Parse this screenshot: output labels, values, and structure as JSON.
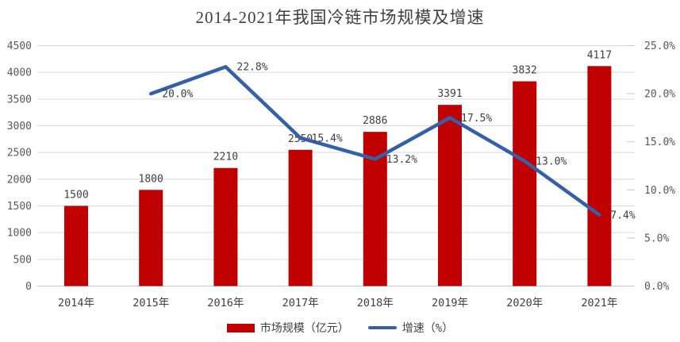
{
  "title": "2014-2021年我国冷链市场规模及增速",
  "legend": {
    "items": [
      {
        "label": "市场规模（亿元）",
        "swatch": "bar"
      },
      {
        "label": "增速（%）",
        "swatch": "line"
      }
    ]
  },
  "colors": {
    "bar": "#C00000",
    "line": "#3560A8",
    "grid": "#D9D9D9",
    "baseline": "#C6C6C6",
    "right_tick": "#C9C9C9",
    "axis_tick_text": "#595959",
    "data_label_text": "#404040",
    "title_text": "#3F3F3F",
    "background": "#FFFFFF"
  },
  "chart_data": {
    "type": "bar+line",
    "title": "2014-2021年我国冷链市场规模及增速",
    "categories": [
      "2014年",
      "2015年",
      "2016年",
      "2017年",
      "2018年",
      "2019年",
      "2020年",
      "2021年"
    ],
    "series": [
      {
        "name": "市场规模（亿元）",
        "type": "bar",
        "axis": "left",
        "values": [
          1500,
          1800,
          2210,
          2550,
          2886,
          3391,
          3832,
          4117
        ],
        "data_labels": [
          "1500",
          "1800",
          "2210",
          "2550",
          "2886",
          "3391",
          "3832",
          "4117"
        ]
      },
      {
        "name": "增速（%）",
        "type": "line",
        "axis": "right",
        "values": [
          null,
          20.0,
          22.8,
          15.4,
          13.2,
          17.5,
          13.0,
          7.4
        ],
        "data_labels": [
          null,
          "20.0%",
          "22.8%",
          "15.4%",
          "13.2%",
          "17.5%",
          "13.0%",
          "7.4%"
        ]
      }
    ],
    "left_axis": {
      "min": 0,
      "max": 4500,
      "step": 500,
      "tick_labels": [
        "0",
        "500",
        "1000",
        "1500",
        "2000",
        "2500",
        "3000",
        "3500",
        "4000",
        "4500"
      ]
    },
    "right_axis": {
      "min": 0,
      "max": 25,
      "step": 5,
      "tick_labels": [
        "0.0%",
        "5.0%",
        "10.0%",
        "15.0%",
        "20.0%",
        "25.0%"
      ]
    },
    "grid": true,
    "legend_position": "bottom"
  }
}
